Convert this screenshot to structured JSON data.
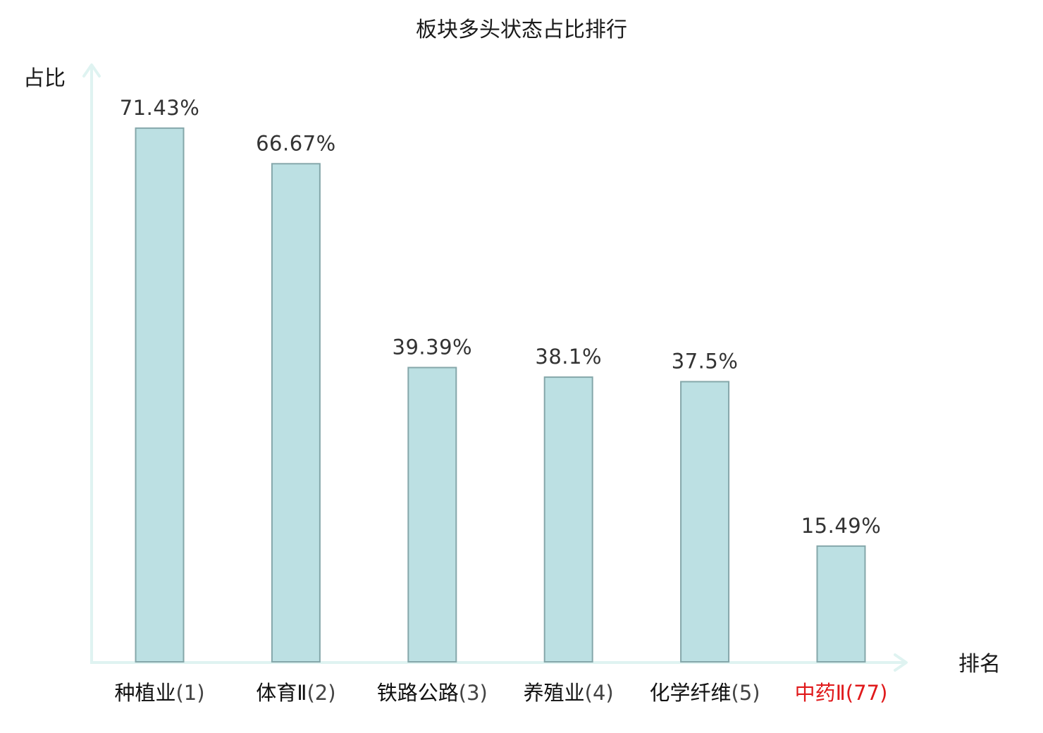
{
  "chart_data": {
    "type": "bar",
    "title": "板块多头状态占比排行",
    "ylabel": "占比",
    "xlabel": "排名",
    "ylim": [
      0,
      80
    ],
    "grid": false,
    "categories": [
      {
        "name": "种植业",
        "rank": "(1)",
        "highlight": false
      },
      {
        "name": "体育Ⅱ",
        "rank": "(2)",
        "highlight": false
      },
      {
        "name": "铁路公路",
        "rank": "(3)",
        "highlight": false
      },
      {
        "name": "养殖业",
        "rank": "(4)",
        "highlight": false
      },
      {
        "name": "化学纤维",
        "rank": "(5)",
        "highlight": false
      },
      {
        "name": "中药Ⅱ",
        "rank": "(77)",
        "highlight": true
      }
    ],
    "values": [
      71.43,
      66.67,
      39.39,
      38.1,
      37.5,
      15.49
    ],
    "value_labels": [
      "71.43%",
      "66.67%",
      "39.39%",
      "38.1%",
      "37.5%",
      "15.49%"
    ]
  },
  "colors": {
    "bar_fill": "#bce0e3",
    "bar_stroke": "#85a7aa",
    "axis": "#dff3f1",
    "highlight_text": "#e0191b"
  }
}
